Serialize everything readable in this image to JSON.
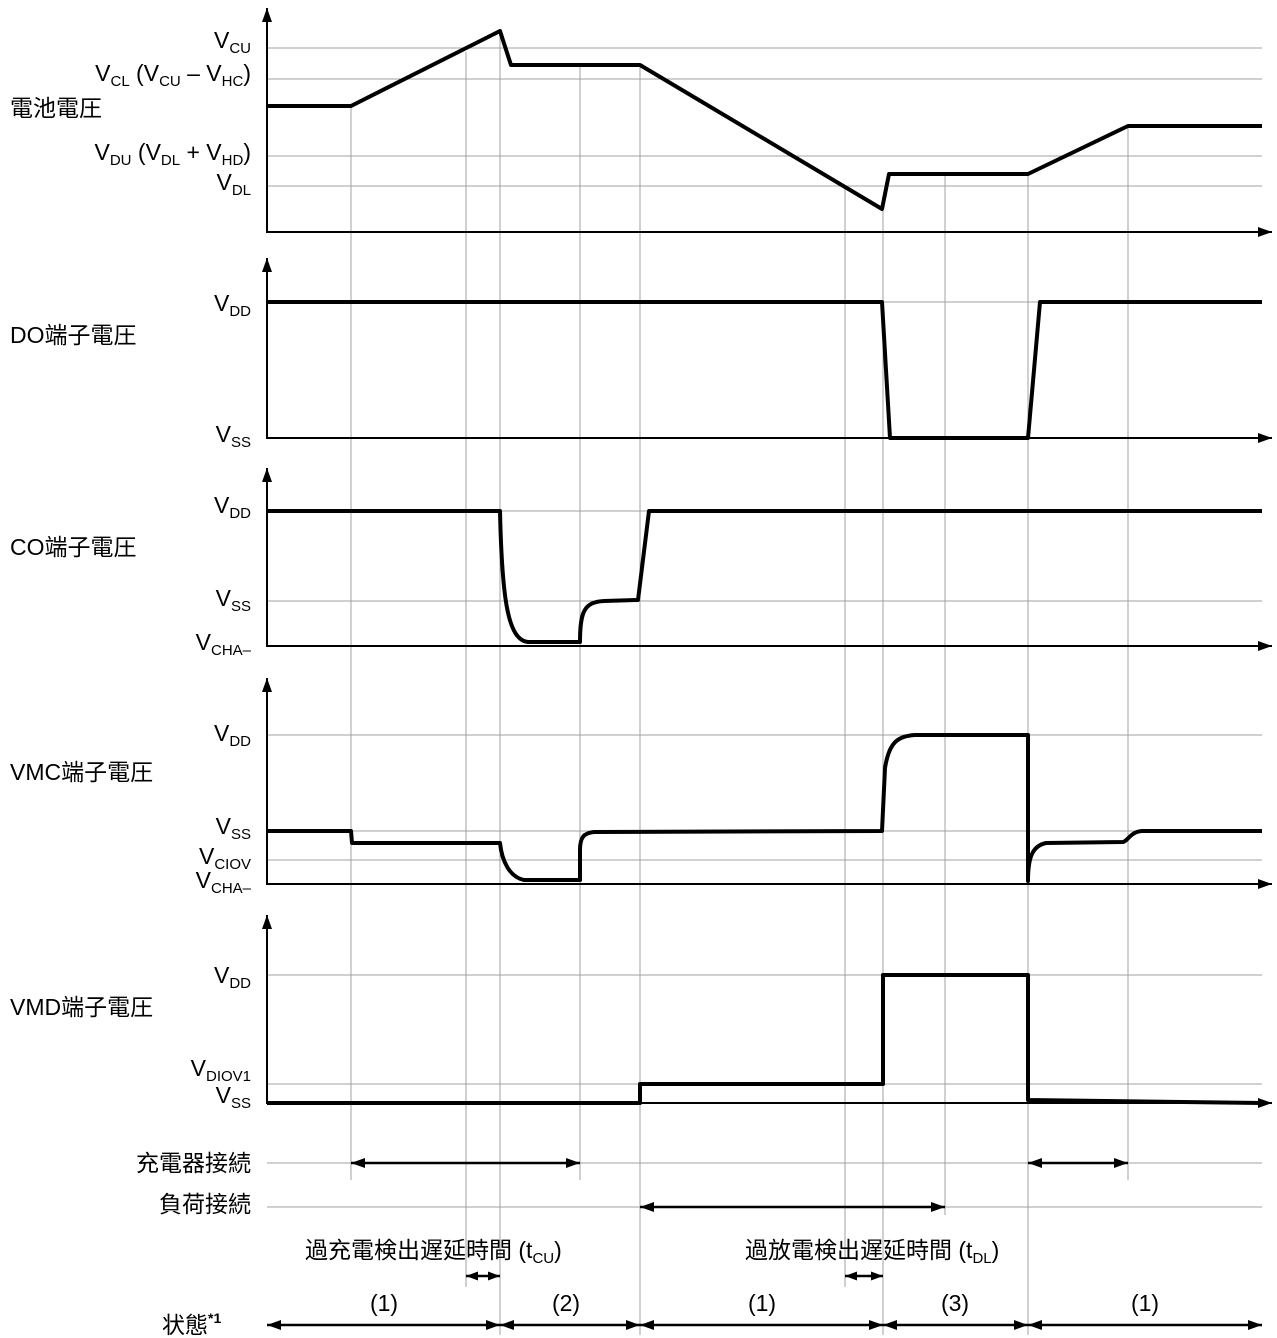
{
  "panels": [
    {
      "title": "電池電圧",
      "levels": [
        {
          "parts": [
            {
              "t": "V"
            },
            {
              "t": "CU",
              "sub": true
            }
          ]
        },
        {
          "parts": [
            {
              "t": "V"
            },
            {
              "t": "CL",
              "sub": true
            },
            {
              "t": " (V"
            },
            {
              "t": "CU",
              "sub": true
            },
            {
              "t": " – V"
            },
            {
              "t": "HC",
              "sub": true
            },
            {
              "t": ")"
            }
          ]
        },
        {
          "parts": [
            {
              "t": "V"
            },
            {
              "t": "DU",
              "sub": true
            },
            {
              "t": " (V"
            },
            {
              "t": "DL",
              "sub": true
            },
            {
              "t": " + V"
            },
            {
              "t": "HD",
              "sub": true
            },
            {
              "t": ")"
            }
          ]
        },
        {
          "parts": [
            {
              "t": "V"
            },
            {
              "t": "DL",
              "sub": true
            }
          ]
        }
      ]
    },
    {
      "title": "DO端子電圧",
      "levels": [
        {
          "parts": [
            {
              "t": "V"
            },
            {
              "t": "DD",
              "sub": true
            }
          ]
        },
        {
          "parts": [
            {
              "t": "V"
            },
            {
              "t": "SS",
              "sub": true
            }
          ]
        }
      ]
    },
    {
      "title": "CO端子電圧",
      "levels": [
        {
          "parts": [
            {
              "t": "V"
            },
            {
              "t": "DD",
              "sub": true
            }
          ]
        },
        {
          "parts": [
            {
              "t": "V"
            },
            {
              "t": "SS",
              "sub": true
            }
          ]
        },
        {
          "parts": [
            {
              "t": "V"
            },
            {
              "t": "CHA–",
              "sub": true
            }
          ]
        }
      ]
    },
    {
      "title": "VMC端子電圧",
      "levels": [
        {
          "parts": [
            {
              "t": "V"
            },
            {
              "t": "DD",
              "sub": true
            }
          ]
        },
        {
          "parts": [
            {
              "t": "V"
            },
            {
              "t": "SS",
              "sub": true
            }
          ]
        },
        {
          "parts": [
            {
              "t": "V"
            },
            {
              "t": "CIOV",
              "sub": true
            }
          ]
        },
        {
          "parts": [
            {
              "t": "V"
            },
            {
              "t": "CHA–",
              "sub": true
            }
          ]
        }
      ]
    },
    {
      "title": "VMD端子電圧",
      "levels": [
        {
          "parts": [
            {
              "t": "V"
            },
            {
              "t": "DD",
              "sub": true
            }
          ]
        },
        {
          "parts": [
            {
              "t": "V"
            },
            {
              "t": "DIOV1",
              "sub": true
            }
          ]
        },
        {
          "parts": [
            {
              "t": "V"
            },
            {
              "t": "SS",
              "sub": true
            }
          ]
        }
      ]
    }
  ],
  "connections": [
    {
      "label": "充電器接続"
    },
    {
      "label": "負荷接続"
    }
  ],
  "delays": [
    {
      "parts": [
        {
          "t": "過充電検出遅延時間 (t"
        },
        {
          "t": "CU",
          "sub": true
        },
        {
          "t": ")"
        }
      ]
    },
    {
      "parts": [
        {
          "t": "過放電検出遅延時間 (t"
        },
        {
          "t": "DL",
          "sub": true
        },
        {
          "t": ")"
        }
      ]
    }
  ],
  "state": {
    "label": "状態",
    "note": "*1",
    "segments": [
      "(1)",
      "(2)",
      "(1)",
      "(3)",
      "(1)"
    ]
  },
  "colors": {
    "waveform": "#000000",
    "grid": "#a0a0a0"
  }
}
